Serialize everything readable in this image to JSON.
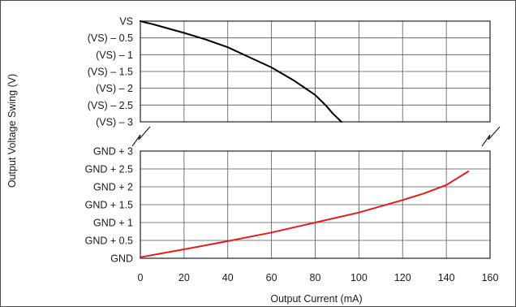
{
  "chart_data": {
    "type": "line",
    "xlabel": "Output Current (mA)",
    "ylabel": "Output Voltage Swing (V)",
    "xlim": [
      0,
      160
    ],
    "x_ticks": [
      0,
      20,
      40,
      60,
      80,
      100,
      120,
      140,
      160
    ],
    "x_tick_labels": [
      "0",
      "20",
      "40",
      "60",
      "80",
      "100",
      "120",
      "140",
      "160"
    ],
    "grid": true,
    "axis_break": "broken y-axis between (VS) - 3 and GND + 3",
    "upper_panel": {
      "y_ticks": [
        0,
        -0.5,
        -1,
        -1.5,
        -2,
        -2.5,
        -3
      ],
      "y_tick_labels": [
        "VS",
        "(VS) – 0.5",
        "(VS) – 1",
        "(VS) – 1.5",
        "(VS) – 2",
        "(VS) – 2.5",
        "(VS) – 3"
      ],
      "ylim": [
        -3,
        0
      ]
    },
    "lower_panel": {
      "y_ticks": [
        3,
        2.5,
        2,
        1.5,
        1,
        0.5,
        0
      ],
      "y_tick_labels": [
        "GND + 3",
        "GND + 2.5",
        "GND + 2",
        "GND + 1.5",
        "GND + 1",
        "GND + 0.5",
        "GND"
      ],
      "ylim": [
        0,
        3
      ]
    },
    "series": [
      {
        "panel": "upper",
        "color": "#000000",
        "x": [
          0,
          3,
          5,
          10,
          20,
          30,
          40,
          50,
          60,
          70,
          80,
          85,
          88,
          92
        ],
        "y": [
          0,
          -0.05,
          -0.08,
          -0.17,
          -0.35,
          -0.55,
          -0.78,
          -1.08,
          -1.38,
          -1.76,
          -2.2,
          -2.52,
          -2.75,
          -3.0
        ]
      },
      {
        "panel": "lower",
        "color": "#e01e1e",
        "x": [
          0,
          20,
          40,
          60,
          80,
          100,
          120,
          130,
          140,
          150
        ],
        "y": [
          0.03,
          0.25,
          0.48,
          0.72,
          1.0,
          1.28,
          1.63,
          1.82,
          2.05,
          2.43
        ]
      }
    ]
  }
}
